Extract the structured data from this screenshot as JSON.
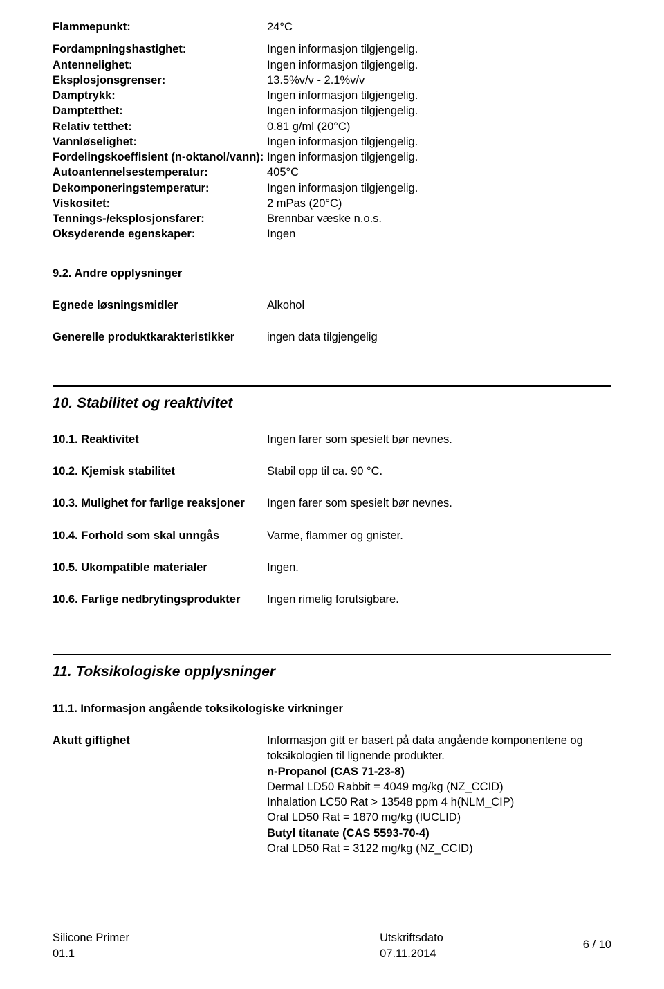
{
  "physchem": {
    "flammepunkt_label": "Flammepunkt:",
    "flammepunkt_value": "24°C",
    "fordampning_label": "Fordampningshastighet:",
    "fordampning_value": "Ingen informasjon tilgjengelig.",
    "antennelighet_label": "Antennelighet:",
    "antennelighet_value": "Ingen informasjon tilgjengelig.",
    "eksplosjon_label": "Eksplosjonsgrenser:",
    "eksplosjon_value": "13.5%v/v - 2.1%v/v",
    "damptrykk_label": "Damptrykk:",
    "damptrykk_value": "Ingen informasjon tilgjengelig.",
    "damptetthet_label": "Damptetthet:",
    "damptetthet_value": "Ingen informasjon tilgjengelig.",
    "relativ_label": "Relativ tetthet:",
    "relativ_value": "0.81 g/ml (20°C)",
    "vannlos_label": "Vannløselighet:",
    "vannlos_value": "Ingen informasjon tilgjengelig.",
    "fordeling_label": "Fordelingskoeffisient (n-oktanol/vann):",
    "fordeling_value": "Ingen informasjon tilgjengelig.",
    "autoant_label": "Autoantennelsestemperatur:",
    "autoant_value": "405°C",
    "dekomp_label": "Dekomponeringstemperatur:",
    "dekomp_value": "Ingen informasjon tilgjengelig.",
    "viskositet_label": "Viskositet:",
    "viskositet_value": "2 mPas (20°C)",
    "tennings_label": "Tennings-/eksplosjonsfarer:",
    "tennings_value": "Brennbar væske n.o.s.",
    "oksyderende_label": "Oksyderende egenskaper:",
    "oksyderende_value": "Ingen"
  },
  "s92": {
    "heading": "9.2. Andre opplysninger",
    "egnede_label": "Egnede løsningsmidler",
    "egnede_value": "Alkohol",
    "generelle_label": "Generelle produktkarakteristikker",
    "generelle_value": "ingen data tilgjengelig"
  },
  "s10": {
    "title": "10. Stabilitet og reaktivitet",
    "r1_label": "10.1. Reaktivitet",
    "r1_value": "Ingen farer som spesielt bør nevnes.",
    "r2_label": "10.2. Kjemisk stabilitet",
    "r2_value": "Stabil opp til ca. 90 °C.",
    "r3_label": "10.3. Mulighet for farlige reaksjoner",
    "r3_value": "Ingen farer som spesielt bør nevnes.",
    "r4_label": "10.4. Forhold som skal unngås",
    "r4_value": "Varme, flammer og gnister.",
    "r5_label": "10.5. Ukompatible materialer",
    "r5_value": "Ingen.",
    "r6_label": "10.6. Farlige nedbrytingsprodukter",
    "r6_value": "Ingen rimelig forutsigbare."
  },
  "s11": {
    "title": "11. Toksikologiske opplysninger",
    "sub": "11.1. Informasjon angående toksikologiske virkninger",
    "akutt_label": "Akutt giftighet",
    "line1": "Informasjon gitt er basert på data angående komponentene og toksikologien til lignende produkter.",
    "line2_bold": "n-Propanol (CAS 71-23-8)",
    "line3": "Dermal LD50 Rabbit = 4049 mg/kg  (NZ_CCID)",
    "line4": "Inhalation LC50 Rat > 13548 ppm 4 h(NLM_CIP)",
    "line5": "Oral LD50 Rat = 1870 mg/kg  (IUCLID)",
    "line6_bold": "Butyl titanate (CAS 5593-70-4)",
    "line7": "Oral LD50 Rat = 3122 mg/kg  (NZ_CCID)"
  },
  "footer": {
    "left1": "Silicone Primer",
    "left2": "01.1",
    "mid_label": "Utskriftsdato",
    "mid_date": "07.11.2014",
    "right": "6 / 10"
  }
}
